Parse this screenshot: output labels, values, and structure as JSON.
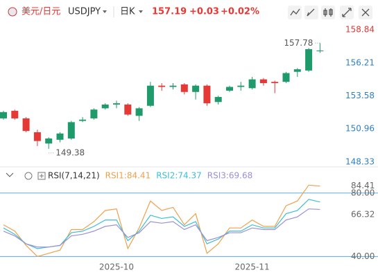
{
  "header": {
    "pair": "美元/日元",
    "symbol": "USDJPY",
    "period": "日K",
    "price": "157.19",
    "change": "+0.03",
    "change_pct": "+0.02%"
  },
  "chart_data": [
    {
      "type": "candlestick",
      "categories": [
        null,
        null,
        null,
        null,
        null,
        null,
        null,
        null,
        null,
        null,
        "2025-10",
        null,
        null,
        null,
        null,
        null,
        null,
        null,
        null,
        null,
        null,
        null,
        "2025-11",
        null,
        null,
        null,
        null,
        null,
        null
      ],
      "open": [
        151.8,
        152.4,
        151.8,
        150.7,
        149.8,
        150.1,
        150.2,
        151.6,
        151.8,
        152.6,
        152.9,
        152.9,
        152.0,
        152.8,
        154.4,
        154.3,
        154.5,
        153.9,
        154.4,
        153.1,
        154.0,
        154.3,
        154.2,
        154.9,
        154.7,
        154.7,
        155.5,
        155.6,
        157.15
      ],
      "close": [
        152.3,
        151.8,
        150.8,
        150.0,
        150.2,
        150.6,
        151.5,
        151.7,
        152.5,
        152.9,
        153.0,
        152.1,
        152.6,
        154.4,
        154.3,
        154.4,
        153.9,
        154.4,
        153.0,
        153.5,
        154.3,
        154.4,
        154.9,
        154.6,
        154.6,
        155.4,
        155.7,
        157.3,
        157.19
      ],
      "high": [
        152.4,
        152.5,
        151.9,
        150.9,
        150.3,
        150.7,
        151.6,
        151.9,
        152.6,
        153.0,
        153.2,
        153.0,
        152.7,
        154.7,
        154.6,
        154.6,
        154.6,
        154.5,
        154.5,
        153.6,
        154.4,
        154.7,
        155.1,
        155.0,
        154.8,
        155.5,
        155.8,
        157.4,
        157.78
      ],
      "low": [
        151.7,
        151.7,
        150.7,
        149.6,
        149.38,
        149.9,
        150.1,
        151.5,
        151.7,
        152.5,
        152.6,
        152.0,
        151.6,
        152.7,
        154.0,
        154.1,
        153.7,
        153.3,
        152.8,
        152.9,
        153.9,
        154.0,
        154.1,
        154.4,
        153.8,
        154.6,
        155.1,
        155.5,
        157.0
      ],
      "up_color": "#1f9a6a",
      "down_color": "#e53935",
      "ylim": [
        148.33,
        158.84
      ],
      "yticks": [
        158.84,
        156.21,
        153.58,
        150.96,
        148.33
      ],
      "ytick_colors": [
        "#e53935",
        "#2f7fc1",
        "#2f7fc1",
        "#2f7fc1",
        "#2f7fc1"
      ],
      "annotations": [
        {
          "text": "157.78",
          "index": 28,
          "value": 157.78
        },
        {
          "text": "149.38",
          "index": 4,
          "value": 149.38
        }
      ]
    },
    {
      "type": "line",
      "title": "RSI(7,14,21)",
      "series": [
        {
          "name": "RSI1:84.41",
          "color": "#f0a04b",
          "values": [
            60,
            56,
            47,
            40,
            42,
            44,
            57,
            57,
            62,
            69,
            70,
            45,
            58,
            75,
            69,
            71,
            60,
            67,
            42,
            48,
            58,
            58,
            63,
            59,
            59,
            72,
            75,
            85,
            84.41
          ]
        },
        {
          "name": "RSI2:74.37",
          "color": "#3cbfd4",
          "values": [
            58,
            54,
            48,
            45,
            46,
            47,
            55,
            56,
            59,
            63,
            63,
            50,
            56,
            66,
            64,
            65,
            59,
            62,
            48,
            51,
            56,
            56,
            60,
            58,
            58,
            67,
            69,
            76,
            74.37
          ]
        },
        {
          "name": "RSI3:69.68",
          "color": "#9b8fd6",
          "values": [
            56,
            53,
            48,
            46,
            46,
            47,
            53,
            54,
            56,
            59,
            60,
            52,
            55,
            62,
            61,
            62,
            57,
            60,
            50,
            52,
            55,
            55,
            58,
            57,
            57,
            63,
            65,
            70,
            69.68
          ]
        }
      ],
      "ylim": [
        38,
        93
      ],
      "yticks": [
        {
          "value": 80,
          "label": "80.00"
        },
        66.32,
        {
          "value": 40,
          "label": "40.00"
        }
      ],
      "hlines": [
        80,
        40
      ],
      "hline_color": "#5aa9e6"
    }
  ]
}
